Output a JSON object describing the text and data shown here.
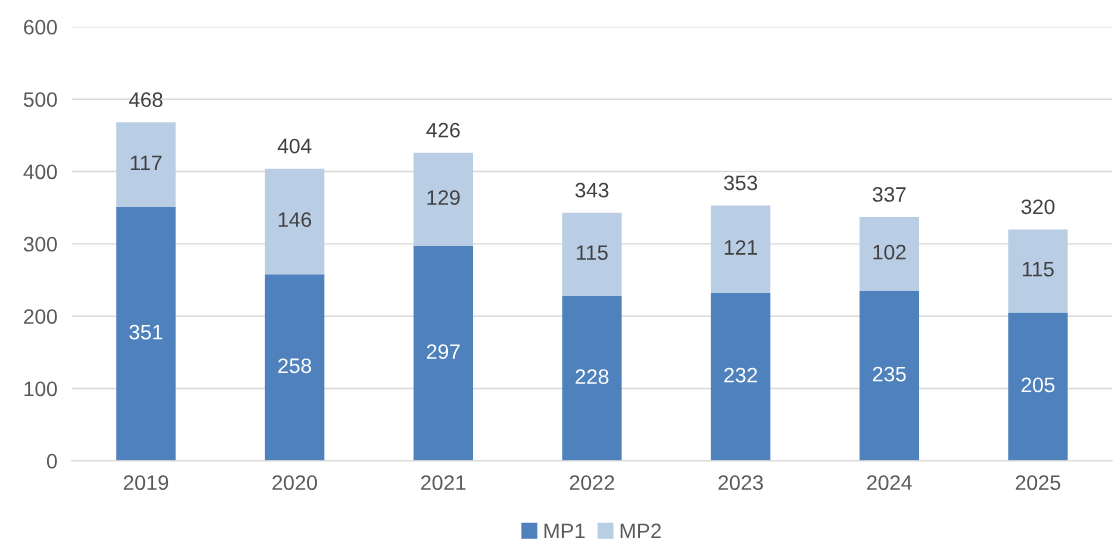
{
  "chart_data": {
    "type": "bar",
    "stacked": true,
    "categories": [
      "2019",
      "2020",
      "2021",
      "2022",
      "2023",
      "2024",
      "2025"
    ],
    "series": [
      {
        "name": "MP1",
        "color": "#4f81bd",
        "values": [
          351,
          258,
          297,
          228,
          232,
          235,
          205
        ]
      },
      {
        "name": "MP2",
        "color": "#b9cde5",
        "values": [
          117,
          146,
          129,
          115,
          121,
          102,
          115
        ]
      }
    ],
    "totals": [
      "468",
      "404",
      "426",
      "343",
      "353",
      "337",
      "320"
    ],
    "data_labels": true,
    "ylim": [
      0,
      600
    ],
    "yticks": [
      0,
      100,
      200,
      300,
      400,
      500,
      600
    ],
    "grid": "y",
    "legend": "bottom"
  }
}
